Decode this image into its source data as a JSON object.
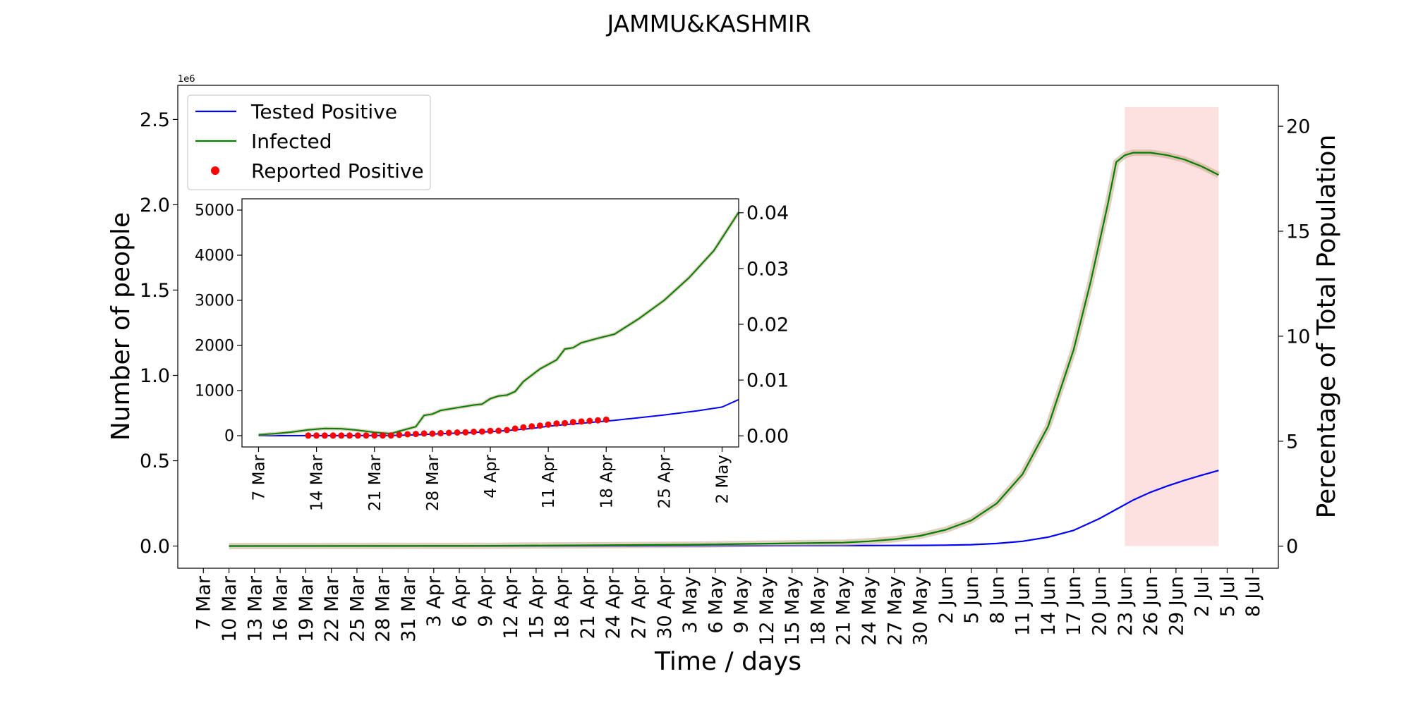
{
  "chart_data": [
    {
      "type": "line",
      "title": "JAMMU&KASHMIR",
      "xlabel": "Time / days",
      "ylabel": "Number of people",
      "ylabel_right": "Percentage of Total Population",
      "y_offset_label": "1e6",
      "xlim": [
        "2020-03-04",
        "2020-07-11"
      ],
      "ylim": [
        -130000,
        2700000
      ],
      "ylim_right": [
        -1.05,
        21.95
      ],
      "yticks": [
        0.0,
        0.5,
        1.0,
        1.5,
        2.0,
        2.5
      ],
      "yticks_right": [
        0,
        5,
        10,
        15,
        20
      ],
      "xtick_labels": [
        "7 Mar",
        "10 Mar",
        "13 Mar",
        "16 Mar",
        "19 Mar",
        "22 Mar",
        "25 Mar",
        "28 Mar",
        "31 Mar",
        "3 Apr",
        "6 Apr",
        "9 Apr",
        "12 Apr",
        "15 Apr",
        "18 Apr",
        "21 Apr",
        "24 Apr",
        "27 Apr",
        "30 Apr",
        "3 May",
        "6 May",
        "9 May",
        "12 May",
        "15 May",
        "18 May",
        "21 May",
        "24 May",
        "27 May",
        "30 May",
        "2 Jun",
        "5 Jun",
        "8 Jun",
        "11 Jun",
        "14 Jun",
        "17 Jun",
        "20 Jun",
        "23 Jun",
        "26 Jun",
        "29 Jun",
        "2 Jul",
        "5 Jul",
        "8 Jul"
      ],
      "xtick_dates": [
        "2020-03-07",
        "2020-03-10",
        "2020-03-13",
        "2020-03-16",
        "2020-03-19",
        "2020-03-22",
        "2020-03-25",
        "2020-03-28",
        "2020-03-31",
        "2020-04-03",
        "2020-04-06",
        "2020-04-09",
        "2020-04-12",
        "2020-04-15",
        "2020-04-18",
        "2020-04-21",
        "2020-04-24",
        "2020-04-27",
        "2020-04-30",
        "2020-05-03",
        "2020-05-06",
        "2020-05-09",
        "2020-05-12",
        "2020-05-15",
        "2020-05-18",
        "2020-05-21",
        "2020-05-24",
        "2020-05-27",
        "2020-05-30",
        "2020-06-02",
        "2020-06-05",
        "2020-06-08",
        "2020-06-11",
        "2020-06-14",
        "2020-06-17",
        "2020-06-20",
        "2020-06-23",
        "2020-06-26",
        "2020-06-29",
        "2020-07-02",
        "2020-07-05",
        "2020-07-08"
      ],
      "shaded_region": {
        "x_start": "2020-06-23",
        "x_end": "2020-07-04",
        "color": "#fde0e0"
      },
      "legend": {
        "placement": "top-left",
        "entries": [
          "Tested Positive",
          "Infected",
          "Reported Positive"
        ]
      },
      "series": [
        {
          "name": "Tested Positive",
          "color": "#0000ff",
          "points": [
            [
              "2020-03-10",
              0
            ],
            [
              "2020-04-09",
              200
            ],
            [
              "2020-05-03",
              1000
            ],
            [
              "2020-05-21",
              2500
            ],
            [
              "2020-05-30",
              4000
            ],
            [
              "2020-06-02",
              5000
            ],
            [
              "2020-06-05",
              8000
            ],
            [
              "2020-06-08",
              15000
            ],
            [
              "2020-06-11",
              28000
            ],
            [
              "2020-06-14",
              52000
            ],
            [
              "2020-06-17",
              92000
            ],
            [
              "2020-06-20",
              160000
            ],
            [
              "2020-06-22",
              215000
            ],
            [
              "2020-06-24",
              270000
            ],
            [
              "2020-06-26",
              315000
            ],
            [
              "2020-06-28",
              352000
            ],
            [
              "2020-06-30",
              385000
            ],
            [
              "2020-07-02",
              415000
            ],
            [
              "2020-07-04",
              443000
            ]
          ]
        },
        {
          "name": "Infected",
          "color": "#008000",
          "points": [
            [
              "2020-03-10",
              0
            ],
            [
              "2020-04-09",
              1500
            ],
            [
              "2020-05-03",
              8000
            ],
            [
              "2020-05-21",
              20000
            ],
            [
              "2020-05-24",
              28000
            ],
            [
              "2020-05-27",
              40000
            ],
            [
              "2020-05-30",
              60000
            ],
            [
              "2020-06-02",
              95000
            ],
            [
              "2020-06-05",
              150000
            ],
            [
              "2020-06-08",
              250000
            ],
            [
              "2020-06-11",
              420000
            ],
            [
              "2020-06-14",
              700000
            ],
            [
              "2020-06-17",
              1150000
            ],
            [
              "2020-06-19",
              1550000
            ],
            [
              "2020-06-21",
              2000000
            ],
            [
              "2020-06-22",
              2250000
            ],
            [
              "2020-06-23",
              2290000
            ],
            [
              "2020-06-24",
              2305000
            ],
            [
              "2020-06-26",
              2305000
            ],
            [
              "2020-06-28",
              2290000
            ],
            [
              "2020-06-30",
              2265000
            ],
            [
              "2020-07-02",
              2225000
            ],
            [
              "2020-07-04",
              2175000
            ]
          ]
        }
      ]
    },
    {
      "type": "line",
      "title": "",
      "xlim": [
        "2020-03-05",
        "2020-05-04"
      ],
      "ylim": [
        -250,
        5250
      ],
      "ylim_right": [
        -0.002,
        0.0425
      ],
      "yticks": [
        0,
        1000,
        2000,
        3000,
        4000,
        5000
      ],
      "yticks_right": [
        "0.00",
        "0.01",
        "0.02",
        "0.03",
        "0.04"
      ],
      "xtick_labels": [
        "7 Mar",
        "14 Mar",
        "21 Mar",
        "28 Mar",
        "4 Apr",
        "11 Apr",
        "18 Apr",
        "25 Apr",
        "2 May"
      ],
      "xtick_dates": [
        "2020-03-07",
        "2020-03-14",
        "2020-03-21",
        "2020-03-28",
        "2020-04-04",
        "2020-04-11",
        "2020-04-18",
        "2020-04-25",
        "2020-05-02"
      ],
      "series": [
        {
          "name": "Tested Positive",
          "color": "#0000ff",
          "points": [
            [
              "2020-03-07",
              0
            ],
            [
              "2020-03-14",
              2
            ],
            [
              "2020-03-21",
              5
            ],
            [
              "2020-03-24",
              8
            ],
            [
              "2020-03-26",
              18
            ],
            [
              "2020-03-28",
              35
            ],
            [
              "2020-03-30",
              50
            ],
            [
              "2020-04-01",
              62
            ],
            [
              "2020-04-03",
              80
            ],
            [
              "2020-04-05",
              100
            ],
            [
              "2020-04-07",
              130
            ],
            [
              "2020-04-09",
              160
            ],
            [
              "2020-04-11",
              210
            ],
            [
              "2020-04-13",
              245
            ],
            [
              "2020-04-15",
              275
            ],
            [
              "2020-04-17",
              310
            ],
            [
              "2020-04-19",
              340
            ],
            [
              "2020-04-21",
              380
            ],
            [
              "2020-04-25",
              460
            ],
            [
              "2020-04-29",
              550
            ],
            [
              "2020-05-02",
              635
            ],
            [
              "2020-05-04",
              800
            ]
          ]
        },
        {
          "name": "Infected",
          "color": "#008000",
          "points": [
            [
              "2020-03-07",
              20
            ],
            [
              "2020-03-09",
              45
            ],
            [
              "2020-03-11",
              80
            ],
            [
              "2020-03-13",
              130
            ],
            [
              "2020-03-15",
              160
            ],
            [
              "2020-03-17",
              155
            ],
            [
              "2020-03-19",
              120
            ],
            [
              "2020-03-21",
              75
            ],
            [
              "2020-03-23",
              45
            ],
            [
              "2020-03-24",
              100
            ],
            [
              "2020-03-26",
              200
            ],
            [
              "2020-03-27",
              450
            ],
            [
              "2020-03-28",
              480
            ],
            [
              "2020-03-29",
              560
            ],
            [
              "2020-03-31",
              620
            ],
            [
              "2020-04-02",
              680
            ],
            [
              "2020-04-03",
              700
            ],
            [
              "2020-04-04",
              820
            ],
            [
              "2020-04-05",
              880
            ],
            [
              "2020-04-06",
              900
            ],
            [
              "2020-04-07",
              980
            ],
            [
              "2020-04-08",
              1200
            ],
            [
              "2020-04-10",
              1480
            ],
            [
              "2020-04-12",
              1680
            ],
            [
              "2020-04-13",
              1920
            ],
            [
              "2020-04-14",
              1950
            ],
            [
              "2020-04-15",
              2060
            ],
            [
              "2020-04-17",
              2160
            ],
            [
              "2020-04-19",
              2250
            ],
            [
              "2020-04-22",
              2600
            ],
            [
              "2020-04-25",
              3000
            ],
            [
              "2020-04-28",
              3500
            ],
            [
              "2020-05-01",
              4100
            ],
            [
              "2020-05-04",
              4950
            ]
          ]
        },
        {
          "name": "Reported Positive",
          "color": "#ff0000",
          "marker": "dot",
          "points": [
            [
              "2020-03-13",
              3
            ],
            [
              "2020-03-14",
              3
            ],
            [
              "2020-03-15",
              3
            ],
            [
              "2020-03-16",
              3
            ],
            [
              "2020-03-17",
              3
            ],
            [
              "2020-03-18",
              3
            ],
            [
              "2020-03-19",
              4
            ],
            [
              "2020-03-20",
              4
            ],
            [
              "2020-03-21",
              4
            ],
            [
              "2020-03-22",
              4
            ],
            [
              "2020-03-23",
              4
            ],
            [
              "2020-03-24",
              18
            ],
            [
              "2020-03-25",
              31
            ],
            [
              "2020-03-26",
              38
            ],
            [
              "2020-03-27",
              48
            ],
            [
              "2020-03-28",
              45
            ],
            [
              "2020-03-29",
              55
            ],
            [
              "2020-03-30",
              62
            ],
            [
              "2020-03-31",
              70
            ],
            [
              "2020-04-01",
              75
            ],
            [
              "2020-04-02",
              86
            ],
            [
              "2020-04-03",
              92
            ],
            [
              "2020-04-04",
              106
            ],
            [
              "2020-04-05",
              109
            ],
            [
              "2020-04-06",
              125
            ],
            [
              "2020-04-07",
              158
            ],
            [
              "2020-04-08",
              184
            ],
            [
              "2020-04-09",
              207
            ],
            [
              "2020-04-10",
              224
            ],
            [
              "2020-04-11",
              245
            ],
            [
              "2020-04-12",
              270
            ],
            [
              "2020-04-13",
              278
            ],
            [
              "2020-04-14",
              300
            ],
            [
              "2020-04-15",
              314
            ],
            [
              "2020-04-16",
              328
            ],
            [
              "2020-04-17",
              341
            ],
            [
              "2020-04-18",
              354
            ]
          ]
        }
      ]
    }
  ]
}
